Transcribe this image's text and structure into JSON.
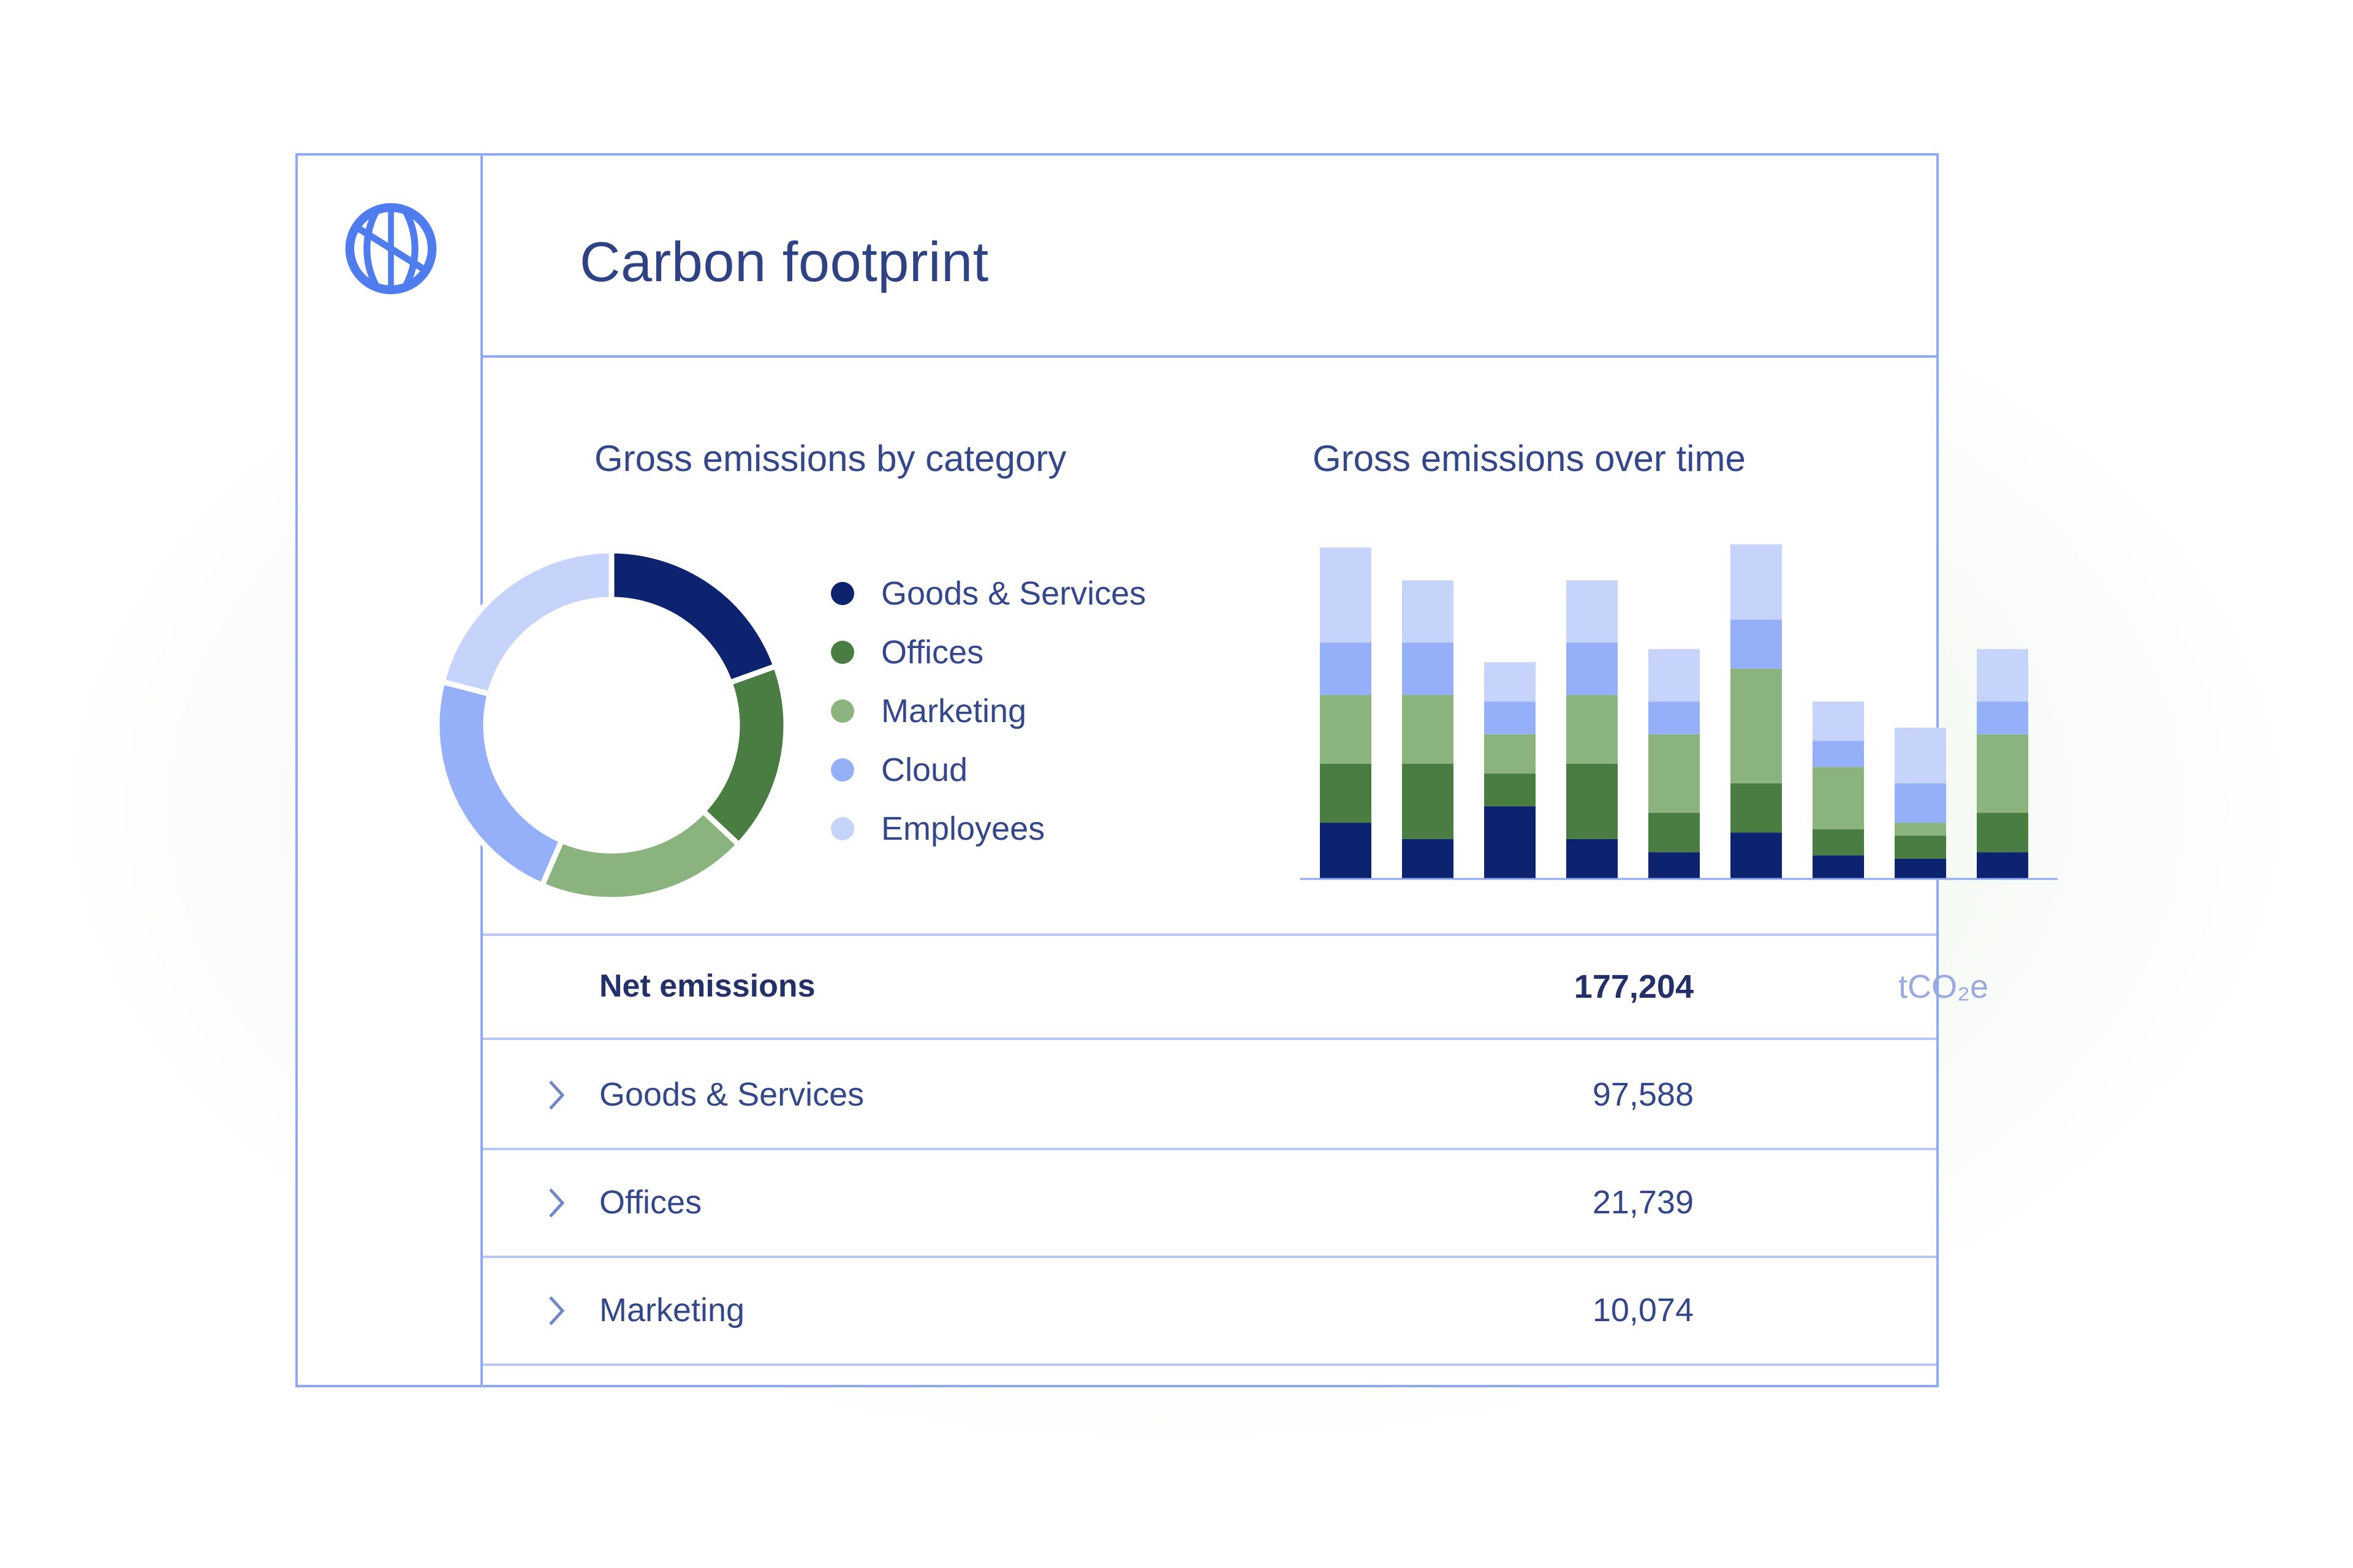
{
  "page": {
    "title": "Carbon footprint"
  },
  "logo": {
    "icon": "globe-icon",
    "color": "#4f7df0"
  },
  "donut_section": {
    "title": "Gross emissions by category"
  },
  "bar_section": {
    "title": "Gross emissions over time"
  },
  "colors": {
    "Goods & Services": "#0d2370",
    "Offices": "#4a7d41",
    "Marketing": "#8ab37d",
    "Cloud": "#95b0f9",
    "Employees": "#c6d4fb"
  },
  "chart_data": [
    {
      "type": "pie",
      "categories": [
        "Goods & Services",
        "Offices",
        "Marketing",
        "Cloud",
        "Employees"
      ],
      "values": [
        19.5,
        17.5,
        19.5,
        22.5,
        21.0
      ],
      "legend": "right"
    },
    {
      "type": "bar",
      "stacked": true,
      "categories": [
        "",
        "",
        "",
        "",
        "",
        "",
        "",
        "",
        ""
      ],
      "series": [
        {
          "name": "Goods & Services",
          "values": [
            17,
            12,
            22,
            12,
            8,
            14,
            7,
            6,
            8
          ]
        },
        {
          "name": "Offices",
          "values": [
            18,
            23,
            10,
            23,
            12,
            15,
            8,
            7,
            12
          ]
        },
        {
          "name": "Marketing",
          "values": [
            21,
            21,
            12,
            21,
            24,
            35,
            19,
            4,
            24
          ]
        },
        {
          "name": "Cloud",
          "values": [
            16,
            16,
            10,
            16,
            10,
            15,
            8,
            12,
            10
          ]
        },
        {
          "name": "Employees",
          "values": [
            29,
            19,
            12,
            19,
            16,
            23,
            12,
            17,
            16
          ]
        }
      ],
      "ylim": [
        0,
        101
      ],
      "grid": false
    }
  ],
  "table": {
    "net": {
      "label": "Net emissions",
      "value": "177,204",
      "unit": "tCO₂e"
    },
    "rows": [
      {
        "label": "Goods & Services",
        "value": "97,588"
      },
      {
        "label": "Offices",
        "value": "21,739"
      },
      {
        "label": "Marketing",
        "value": "10,074"
      }
    ]
  }
}
